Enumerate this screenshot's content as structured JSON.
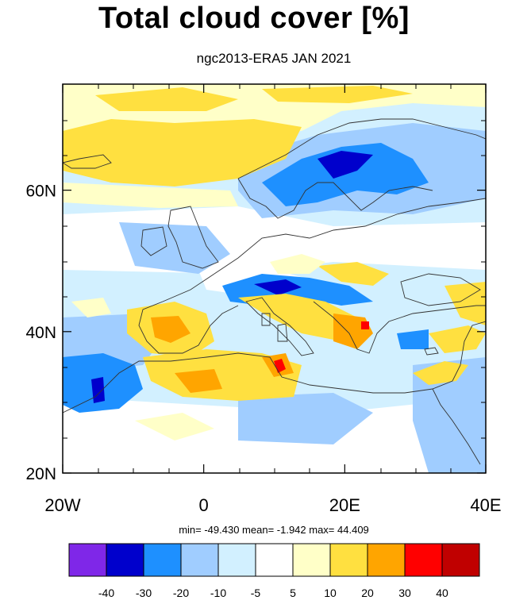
{
  "title": "Total cloud cover [%]",
  "subtitle": "ngc2013-ERA5 JAN 2021",
  "stats": "min= -49.430   mean=  -1.942   max=  44.409",
  "map": {
    "lon_range": [
      -20,
      40
    ],
    "lat_range": [
      20,
      75
    ],
    "lon_labels": [
      {
        "value": -20,
        "label": "20W"
      },
      {
        "value": 0,
        "label": "0"
      },
      {
        "value": 20,
        "label": "20E"
      },
      {
        "value": 40,
        "label": "40E"
      }
    ],
    "lat_labels": [
      {
        "value": 20,
        "label": "20N"
      },
      {
        "value": 40,
        "label": "40N"
      },
      {
        "value": 60,
        "label": "60N"
      }
    ]
  },
  "colorbar": {
    "colors": [
      "#7f27e8",
      "#0000cc",
      "#1e90ff",
      "#a0cdff",
      "#d2f0ff",
      "#ffffff",
      "#ffffc8",
      "#ffe040",
      "#ffa500",
      "#ff0000",
      "#c00000"
    ],
    "labels": [
      "-40",
      "-30",
      "-20",
      "-10",
      "-5",
      "5",
      "10",
      "20",
      "30",
      "40"
    ]
  }
}
